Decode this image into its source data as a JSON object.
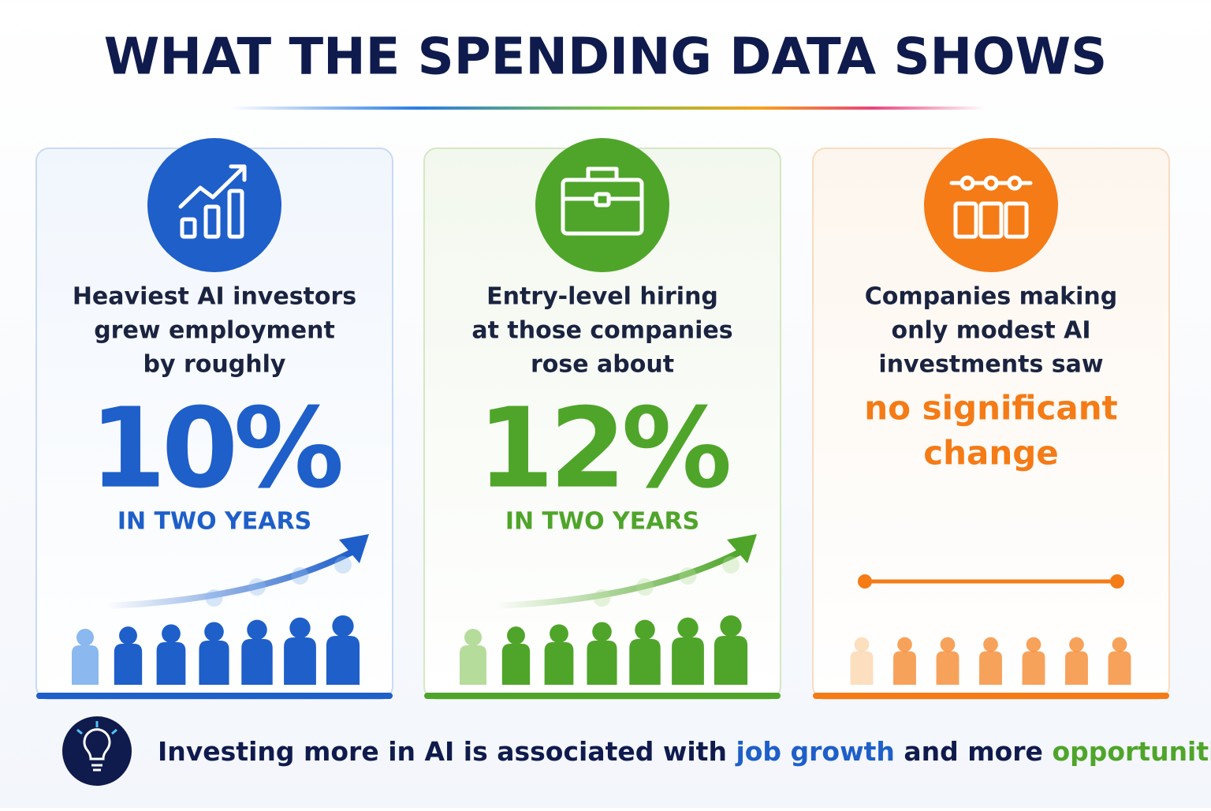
{
  "header": {
    "title": "WHAT THE SPENDING DATA SHOWS"
  },
  "cards": [
    {
      "lines": [
        "Heaviest AI investors",
        "grew employment",
        "by roughly"
      ],
      "figure": "10%",
      "caption": "IN TWO YEARS"
    },
    {
      "lines": [
        "Entry-level hiring",
        "at those companies",
        "rose about"
      ],
      "figure": "12%",
      "caption": "IN TWO YEARS"
    },
    {
      "lines": [
        "Companies making",
        "only modest AI",
        "investments saw"
      ],
      "highlight": [
        "no significant",
        "change"
      ]
    }
  ],
  "footer": {
    "parts": [
      "Investing more in AI is associated with ",
      "job growth",
      " and more ",
      "opportunities",
      "."
    ]
  }
}
